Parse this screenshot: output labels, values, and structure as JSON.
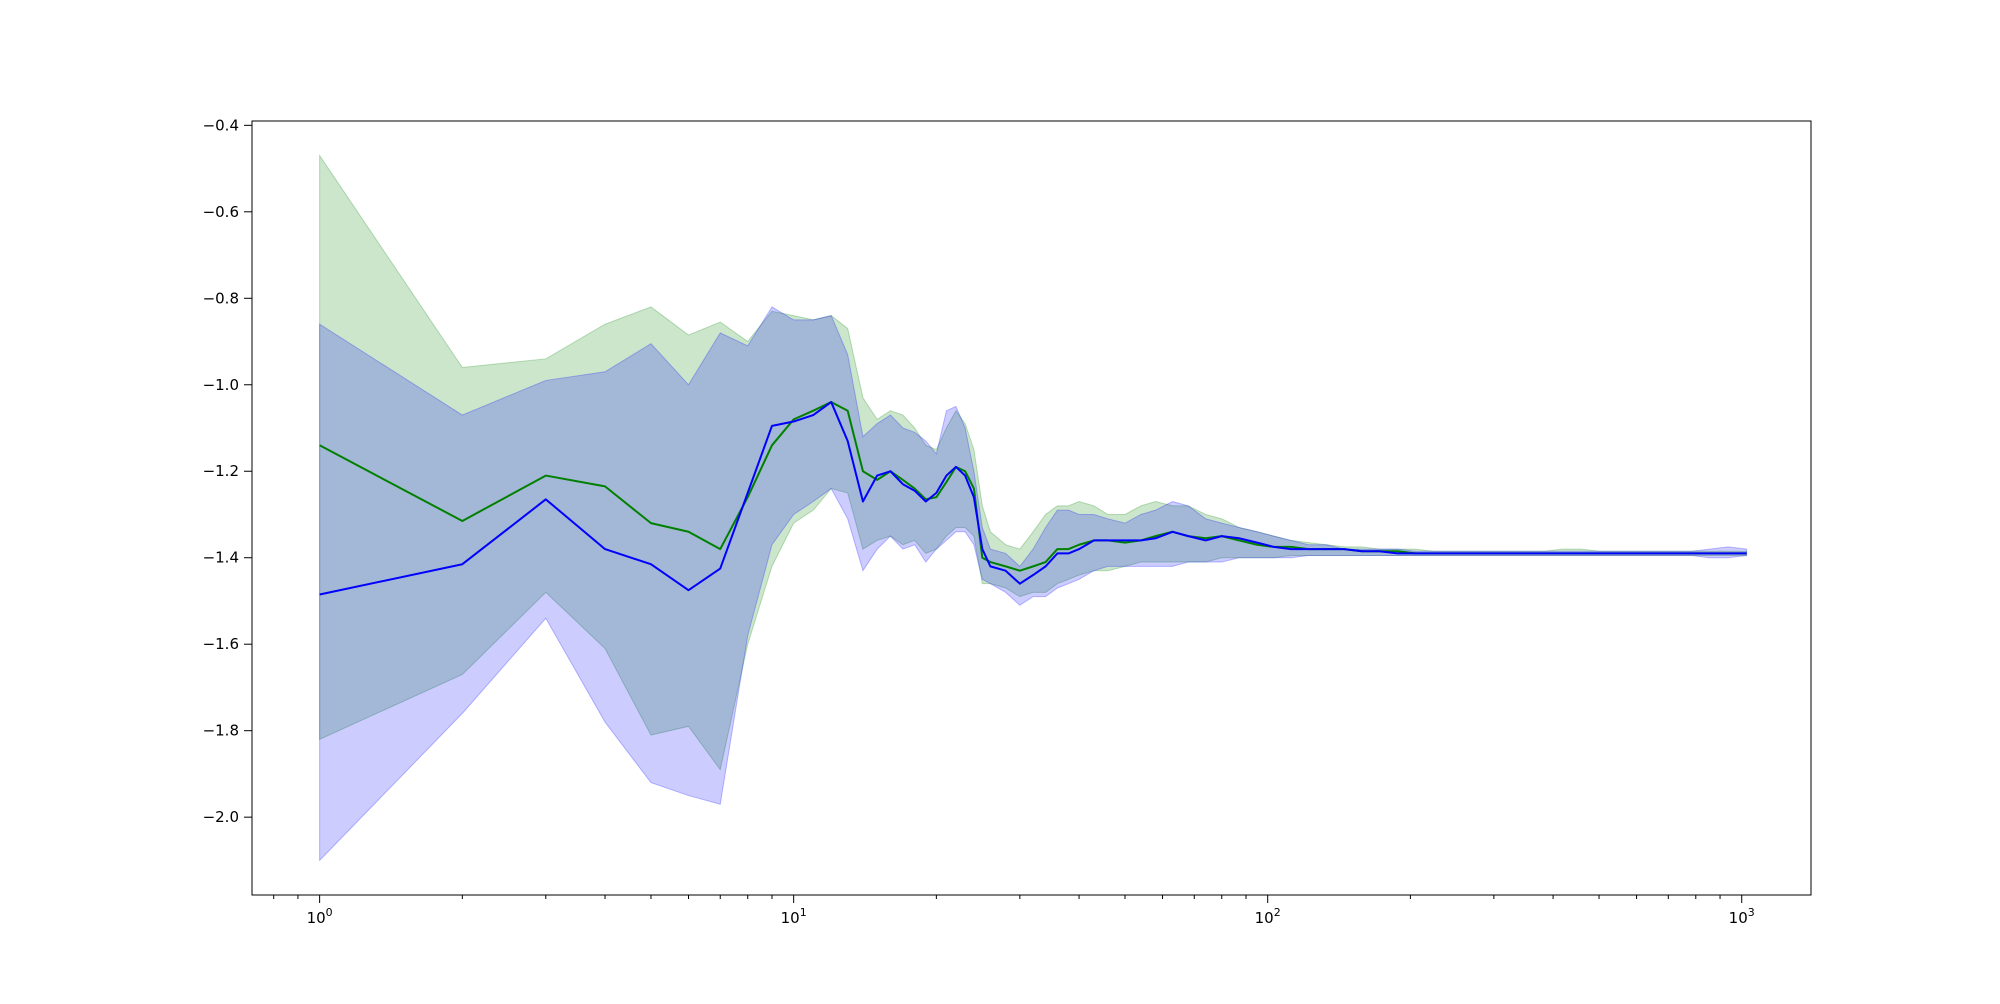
{
  "chart_data": {
    "type": "line",
    "title": "",
    "xlabel": "",
    "ylabel": "",
    "xscale": "log",
    "xlim": [
      0.72,
      1400
    ],
    "ylim": [
      -2.18,
      -0.39
    ],
    "grid": false,
    "legend": "none",
    "x_ticks": [
      {
        "value": 1,
        "base": "10",
        "exp": "0"
      },
      {
        "value": 10,
        "base": "10",
        "exp": "1"
      },
      {
        "value": 100,
        "base": "10",
        "exp": "2"
      },
      {
        "value": 1000,
        "base": "10",
        "exp": "3"
      }
    ],
    "y_ticks": [
      {
        "value": -0.4,
        "label": "−0.4"
      },
      {
        "value": -0.6,
        "label": "−0.6"
      },
      {
        "value": -0.8,
        "label": "−0.8"
      },
      {
        "value": -1.0,
        "label": "−1.0"
      },
      {
        "value": -1.2,
        "label": "−1.2"
      },
      {
        "value": -1.4,
        "label": "−1.4"
      },
      {
        "value": -1.6,
        "label": "−1.6"
      },
      {
        "value": -1.8,
        "label": "−1.8"
      },
      {
        "value": -2.0,
        "label": "−2.0"
      }
    ],
    "series": [
      {
        "color": "#008000",
        "band_color": "#008000",
        "band_opacity": 0.2,
        "x": [
          1,
          2,
          3,
          4,
          5,
          6,
          7,
          8,
          9,
          10,
          11,
          12,
          13,
          14,
          15,
          16,
          17,
          18,
          19,
          20,
          21,
          22,
          23,
          24,
          25,
          26,
          28,
          30,
          32,
          34,
          36,
          38,
          40,
          43,
          46,
          50,
          54,
          58,
          63,
          68,
          74,
          80,
          87,
          95,
          103,
          112,
          122,
          133,
          145,
          158,
          172,
          188,
          205,
          224,
          245,
          268,
          293,
          320,
          350,
          383,
          419,
          458,
          501,
          548,
          599,
          655,
          716,
          783,
          856,
          936,
          1024
        ],
        "y": [
          -1.14,
          -1.315,
          -1.21,
          -1.235,
          -1.32,
          -1.34,
          -1.38,
          -1.26,
          -1.14,
          -1.08,
          -1.06,
          -1.04,
          -1.06,
          -1.2,
          -1.22,
          -1.2,
          -1.22,
          -1.24,
          -1.265,
          -1.26,
          -1.225,
          -1.19,
          -1.2,
          -1.24,
          -1.4,
          -1.41,
          -1.42,
          -1.43,
          -1.42,
          -1.41,
          -1.38,
          -1.38,
          -1.37,
          -1.36,
          -1.36,
          -1.365,
          -1.36,
          -1.35,
          -1.34,
          -1.35,
          -1.355,
          -1.35,
          -1.36,
          -1.37,
          -1.375,
          -1.375,
          -1.38,
          -1.38,
          -1.38,
          -1.385,
          -1.385,
          -1.385,
          -1.39,
          -1.39,
          -1.39,
          -1.39,
          -1.39,
          -1.39,
          -1.39,
          -1.39,
          -1.39,
          -1.39,
          -1.39,
          -1.39,
          -1.39,
          -1.39,
          -1.39,
          -1.39,
          -1.39,
          -1.39,
          -1.39
        ],
        "upper": [
          -0.47,
          -0.96,
          -0.94,
          -0.86,
          -0.82,
          -0.885,
          -0.855,
          -0.9,
          -0.83,
          -0.84,
          -0.85,
          -0.84,
          -0.87,
          -1.03,
          -1.08,
          -1.06,
          -1.07,
          -1.1,
          -1.14,
          -1.15,
          -1.1,
          -1.06,
          -1.09,
          -1.15,
          -1.28,
          -1.34,
          -1.37,
          -1.38,
          -1.34,
          -1.3,
          -1.28,
          -1.28,
          -1.27,
          -1.28,
          -1.3,
          -1.3,
          -1.28,
          -1.27,
          -1.28,
          -1.28,
          -1.3,
          -1.31,
          -1.33,
          -1.34,
          -1.35,
          -1.36,
          -1.365,
          -1.37,
          -1.375,
          -1.375,
          -1.38,
          -1.38,
          -1.38,
          -1.385,
          -1.385,
          -1.385,
          -1.385,
          -1.385,
          -1.385,
          -1.385,
          -1.38,
          -1.38,
          -1.385,
          -1.385,
          -1.385,
          -1.385,
          -1.385,
          -1.385,
          -1.385,
          -1.385,
          -1.385
        ],
        "lower": [
          -1.82,
          -1.67,
          -1.48,
          -1.61,
          -1.81,
          -1.79,
          -1.89,
          -1.6,
          -1.42,
          -1.32,
          -1.29,
          -1.24,
          -1.25,
          -1.38,
          -1.36,
          -1.35,
          -1.37,
          -1.36,
          -1.39,
          -1.38,
          -1.35,
          -1.33,
          -1.33,
          -1.35,
          -1.46,
          -1.46,
          -1.47,
          -1.49,
          -1.48,
          -1.48,
          -1.46,
          -1.45,
          -1.44,
          -1.43,
          -1.43,
          -1.42,
          -1.41,
          -1.41,
          -1.41,
          -1.41,
          -1.41,
          -1.4,
          -1.4,
          -1.4,
          -1.4,
          -1.395,
          -1.395,
          -1.395,
          -1.395,
          -1.395,
          -1.395,
          -1.395,
          -1.395,
          -1.395,
          -1.395,
          -1.395,
          -1.395,
          -1.395,
          -1.395,
          -1.395,
          -1.395,
          -1.395,
          -1.395,
          -1.395,
          -1.395,
          -1.395,
          -1.395,
          -1.395,
          -1.395,
          -1.395,
          -1.395
        ]
      },
      {
        "color": "#0000ff",
        "band_color": "#0000ff",
        "band_opacity": 0.2,
        "x": [
          1,
          2,
          3,
          4,
          5,
          6,
          7,
          8,
          9,
          10,
          11,
          12,
          13,
          14,
          15,
          16,
          17,
          18,
          19,
          20,
          21,
          22,
          23,
          24,
          25,
          26,
          28,
          30,
          32,
          34,
          36,
          38,
          40,
          43,
          46,
          50,
          54,
          58,
          63,
          68,
          74,
          80,
          87,
          95,
          103,
          112,
          122,
          133,
          145,
          158,
          172,
          188,
          205,
          224,
          245,
          268,
          293,
          320,
          350,
          383,
          419,
          458,
          501,
          548,
          599,
          655,
          716,
          783,
          856,
          936,
          1024
        ],
        "y": [
          -1.485,
          -1.415,
          -1.265,
          -1.38,
          -1.415,
          -1.475,
          -1.425,
          -1.25,
          -1.095,
          -1.085,
          -1.07,
          -1.04,
          -1.13,
          -1.27,
          -1.21,
          -1.2,
          -1.23,
          -1.245,
          -1.27,
          -1.25,
          -1.21,
          -1.19,
          -1.21,
          -1.26,
          -1.38,
          -1.42,
          -1.43,
          -1.46,
          -1.44,
          -1.42,
          -1.39,
          -1.39,
          -1.38,
          -1.36,
          -1.36,
          -1.36,
          -1.36,
          -1.355,
          -1.34,
          -1.35,
          -1.36,
          -1.35,
          -1.355,
          -1.365,
          -1.375,
          -1.38,
          -1.38,
          -1.38,
          -1.38,
          -1.385,
          -1.385,
          -1.39,
          -1.39,
          -1.39,
          -1.39,
          -1.39,
          -1.39,
          -1.39,
          -1.39,
          -1.39,
          -1.39,
          -1.39,
          -1.39,
          -1.39,
          -1.39,
          -1.39,
          -1.39,
          -1.39,
          -1.39,
          -1.39,
          -1.39
        ],
        "upper": [
          -0.86,
          -1.07,
          -0.99,
          -0.97,
          -0.905,
          -1.0,
          -0.88,
          -0.91,
          -0.82,
          -0.85,
          -0.85,
          -0.84,
          -0.93,
          -1.12,
          -1.09,
          -1.07,
          -1.1,
          -1.11,
          -1.13,
          -1.16,
          -1.06,
          -1.05,
          -1.1,
          -1.2,
          -1.33,
          -1.38,
          -1.39,
          -1.42,
          -1.38,
          -1.33,
          -1.29,
          -1.29,
          -1.3,
          -1.3,
          -1.31,
          -1.32,
          -1.3,
          -1.29,
          -1.27,
          -1.28,
          -1.31,
          -1.32,
          -1.33,
          -1.34,
          -1.35,
          -1.36,
          -1.37,
          -1.37,
          -1.38,
          -1.38,
          -1.38,
          -1.38,
          -1.385,
          -1.385,
          -1.385,
          -1.385,
          -1.385,
          -1.385,
          -1.385,
          -1.385,
          -1.385,
          -1.385,
          -1.385,
          -1.385,
          -1.385,
          -1.385,
          -1.385,
          -1.385,
          -1.38,
          -1.375,
          -1.38
        ],
        "lower": [
          -2.1,
          -1.76,
          -1.54,
          -1.78,
          -1.92,
          -1.95,
          -1.97,
          -1.58,
          -1.37,
          -1.3,
          -1.27,
          -1.24,
          -1.31,
          -1.43,
          -1.38,
          -1.35,
          -1.38,
          -1.37,
          -1.41,
          -1.38,
          -1.36,
          -1.34,
          -1.34,
          -1.37,
          -1.45,
          -1.46,
          -1.48,
          -1.51,
          -1.49,
          -1.49,
          -1.47,
          -1.46,
          -1.45,
          -1.43,
          -1.42,
          -1.42,
          -1.42,
          -1.42,
          -1.42,
          -1.41,
          -1.41,
          -1.41,
          -1.4,
          -1.4,
          -1.4,
          -1.4,
          -1.395,
          -1.395,
          -1.395,
          -1.395,
          -1.395,
          -1.395,
          -1.395,
          -1.395,
          -1.395,
          -1.395,
          -1.395,
          -1.395,
          -1.395,
          -1.395,
          -1.395,
          -1.395,
          -1.395,
          -1.395,
          -1.395,
          -1.395,
          -1.395,
          -1.395,
          -1.4,
          -1.4,
          -1.395
        ]
      }
    ]
  }
}
